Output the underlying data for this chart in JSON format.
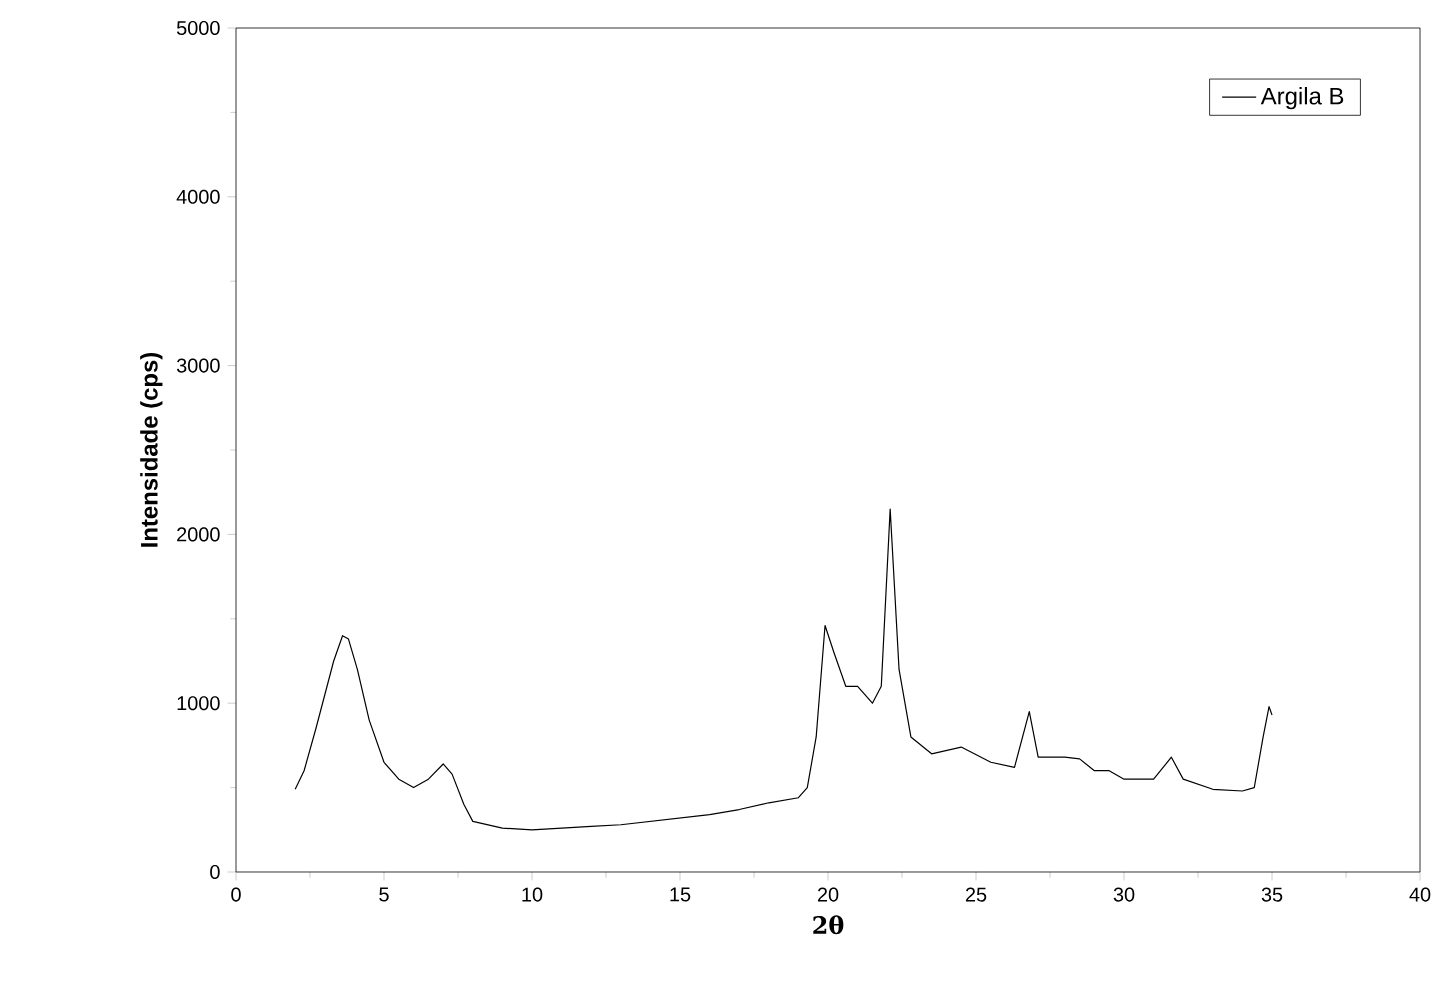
{
  "chart_data": {
    "type": "line",
    "xlabel": "2θ",
    "ylabel": "Intensidade (cps)",
    "x": [
      2.0,
      2.3,
      2.7,
      3.0,
      3.3,
      3.6,
      3.8,
      4.1,
      4.5,
      5.0,
      5.5,
      6.0,
      6.5,
      7.0,
      7.3,
      7.7,
      8.0,
      9.0,
      10,
      11,
      12,
      13,
      14,
      15,
      16,
      17,
      18,
      19,
      19.3,
      19.6,
      19.9,
      20.2,
      20.6,
      21.0,
      21.5,
      21.8,
      22.1,
      22.4,
      22.8,
      23.5,
      24.5,
      25.5,
      26.3,
      26.8,
      27.1,
      28,
      28.5,
      29,
      29.5,
      30,
      31,
      31.6,
      32,
      33,
      34,
      34.4,
      34.7,
      34.9,
      35.0
    ],
    "series": [
      {
        "name": "Argila B",
        "color": "#000000",
        "values": [
          490,
          600,
          850,
          1050,
          1250,
          1400,
          1380,
          1200,
          900,
          650,
          550,
          500,
          550,
          640,
          580,
          400,
          300,
          260,
          250,
          260,
          270,
          280,
          300,
          320,
          340,
          370,
          410,
          440,
          500,
          800,
          1460,
          1300,
          1100,
          1100,
          1000,
          1100,
          2150,
          1200,
          800,
          700,
          740,
          650,
          620,
          950,
          680,
          680,
          670,
          600,
          600,
          550,
          550,
          680,
          550,
          490,
          480,
          500,
          800,
          980,
          930
        ]
      }
    ],
    "xlim": [
      0,
      40
    ],
    "ylim": [
      0,
      5000
    ],
    "xticks": [
      0,
      5,
      10,
      15,
      20,
      25,
      30,
      35,
      40
    ],
    "yticks": [
      0,
      1000,
      2000,
      3000,
      4000,
      5000
    ],
    "legend": "top right",
    "grid": false,
    "marker": "none",
    "line_style": "solid"
  }
}
